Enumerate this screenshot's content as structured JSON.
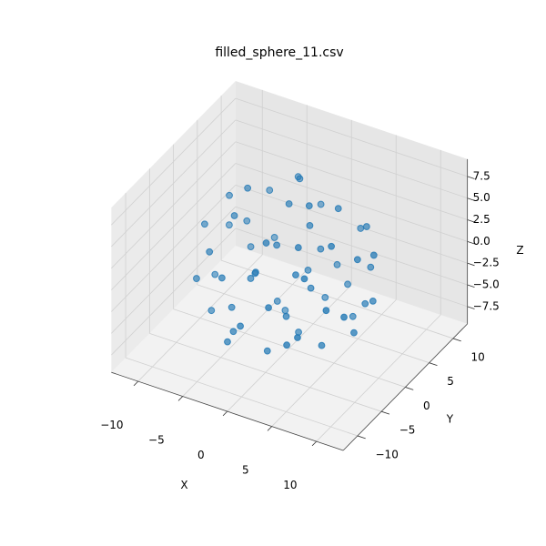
{
  "chart_data": {
    "type": "scatter3d",
    "title": "filled_sphere_11.csv",
    "xlabel": "X",
    "ylabel": "Y",
    "zlabel": "Z",
    "color": "#1f77b4",
    "xlim": [
      -13,
      13
    ],
    "ylim": [
      -13,
      13
    ],
    "zlim": [
      -9.5,
      9.5
    ],
    "xticks": [
      {
        "value": -10,
        "label": "−10"
      },
      {
        "value": -5,
        "label": "−5"
      },
      0,
      5,
      10
    ],
    "yticks": [
      {
        "value": -10,
        "label": "−10"
      },
      {
        "value": -5,
        "label": "−5"
      },
      0,
      5,
      10
    ],
    "zticks": [
      {
        "value": -7.5,
        "label": "−7.5"
      },
      {
        "value": -5,
        "label": "−5.0"
      },
      {
        "value": -2.5,
        "label": "−2.5"
      },
      {
        "value": 0,
        "label": "0.0"
      },
      2.5,
      {
        "value": 5,
        "label": "5.0"
      },
      7.5
    ],
    "grid": true,
    "x": [
      3.2,
      -6.0,
      1.5,
      -2.8,
      7.1,
      -4.4,
      0.6,
      5.5,
      -7.7,
      2.0,
      -1.3,
      4.8,
      -5.1,
      8.0,
      -0.4,
      1.9,
      -3.6,
      6.3,
      -8.3,
      0.1,
      3.7,
      -6.6,
      2.6,
      -2.1,
      5.0,
      -4.9,
      7.4,
      -1.0,
      0.9,
      -7.0,
      4.2,
      -3.0,
      6.8,
      -5.8,
      1.2,
      -0.7,
      3.4,
      -8.0,
      5.9,
      -2.4,
      2.3,
      -4.2,
      8.4,
      -6.2,
      0.4,
      4.6,
      -3.3,
      1.7,
      -5.4,
      6.1,
      -1.8,
      3.0,
      -7.2,
      0.0,
      5.2,
      -2.6,
      7.6,
      -4.0,
      2.8,
      -0.2
    ],
    "y": [
      -4.1,
      2.3,
      7.2,
      -6.5,
      1.0,
      -3.3,
      0.8,
      5.9,
      -1.2,
      -8.1,
      4.6,
      -2.2,
      6.4,
      -3.5,
      -1.9,
      3.0,
      -7.4,
      4.1,
      2.9,
      -4.8,
      8.0,
      -4.0,
      -0.7,
      1.4,
      -6.2,
      5.0,
      -0.3,
      -8.4,
      5.8,
      0.5,
      2.4,
      -2.5,
      -5.0,
      -5.9,
      -2.9,
      7.9,
      -6.9,
      -2.8,
      6.0,
      3.6,
      0.2,
      -0.9,
      2.0,
      4.4,
      -5.6,
      4.7,
      -6.8,
      1.1,
      2.0,
      -2.6,
      -3.7,
      6.6,
      -6.0,
      3.9,
      -8.0,
      6.7,
      3.3,
      -4.6,
      -3.9,
      0.3
    ],
    "z": [
      5.5,
      1.8,
      -3.4,
      -4.9,
      2.6,
      6.1,
      -7.9,
      3.1,
      -3.0,
      0.4,
      7.0,
      -6.3,
      -2.1,
      -1.2,
      3.3,
      0.9,
      1.5,
      -4.5,
      0.2,
      -7.1,
      1.1,
      -5.2,
      8.2,
      -5.6,
      3.7,
      4.2,
      -5.0,
      -2.6,
      -6.6,
      5.4,
      6.7,
      -1.1,
      0.0,
      2.9,
      -3.8,
      2.4,
      -4.1,
      3.6,
      -1.5,
      -8.0,
      -1.9,
      8.0,
      3.0,
      -5.5,
      5.9,
      -6.9,
      -6.1,
      4.6,
      -0.8,
      5.8,
      0.7,
      -4.8,
      -0.6,
      -2.7,
      -2.0,
      5.6,
      -3.3,
      -3.6,
      2.1,
      6.9
    ]
  }
}
